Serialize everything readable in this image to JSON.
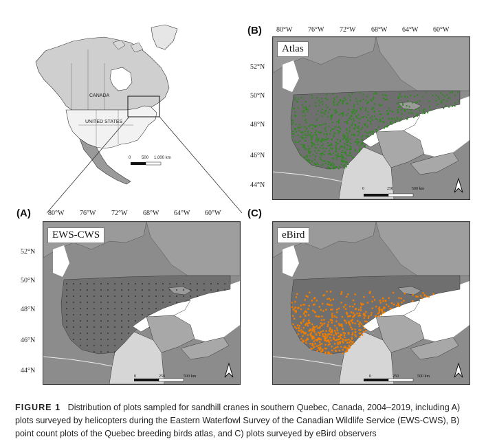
{
  "overview": {
    "canada_label": "CANADA",
    "usa_label": "UNITED STATES",
    "scale_labels": [
      "0",
      "500",
      "1,000 km"
    ]
  },
  "panels": {
    "B": {
      "label": "(B)",
      "title": "Atlas",
      "lon_ticks": [
        "80°W",
        "76°W",
        "72°W",
        "68°W",
        "64°W",
        "60°W"
      ],
      "lat_ticks": [
        "52°N",
        "50°N",
        "48°N",
        "46°N",
        "44°N"
      ],
      "scale_labels": [
        "0",
        "250",
        "500 km"
      ],
      "plot_color": "#2e8b1e"
    },
    "A": {
      "label": "(A)",
      "title": "EWS-CWS",
      "lon_ticks": [
        "80°W",
        "76°W",
        "72°W",
        "68°W",
        "64°W",
        "60°W"
      ],
      "lat_ticks": [
        "52°N",
        "50°N",
        "48°N",
        "46°N",
        "44°N"
      ],
      "scale_labels": [
        "0",
        "250",
        "500 km"
      ],
      "plot_color": "#222222"
    },
    "C": {
      "label": "(C)",
      "title": "eBird",
      "scale_labels": [
        "0",
        "250",
        "500 km"
      ],
      "plot_color": "#f07d00"
    }
  },
  "caption": {
    "figure": "FIGURE 1",
    "text": "Distribution of plots sampled for sandhill cranes in southern Quebec, Canada, 2004–2019, including A) plots surveyed by helicopters during the Eastern Waterfowl Survey of the Canadian Wildlife Service (EWS-CWS), B) point count plots of the Quebec breeding birds atlas, and C) plots surveyed by eBird observers"
  }
}
